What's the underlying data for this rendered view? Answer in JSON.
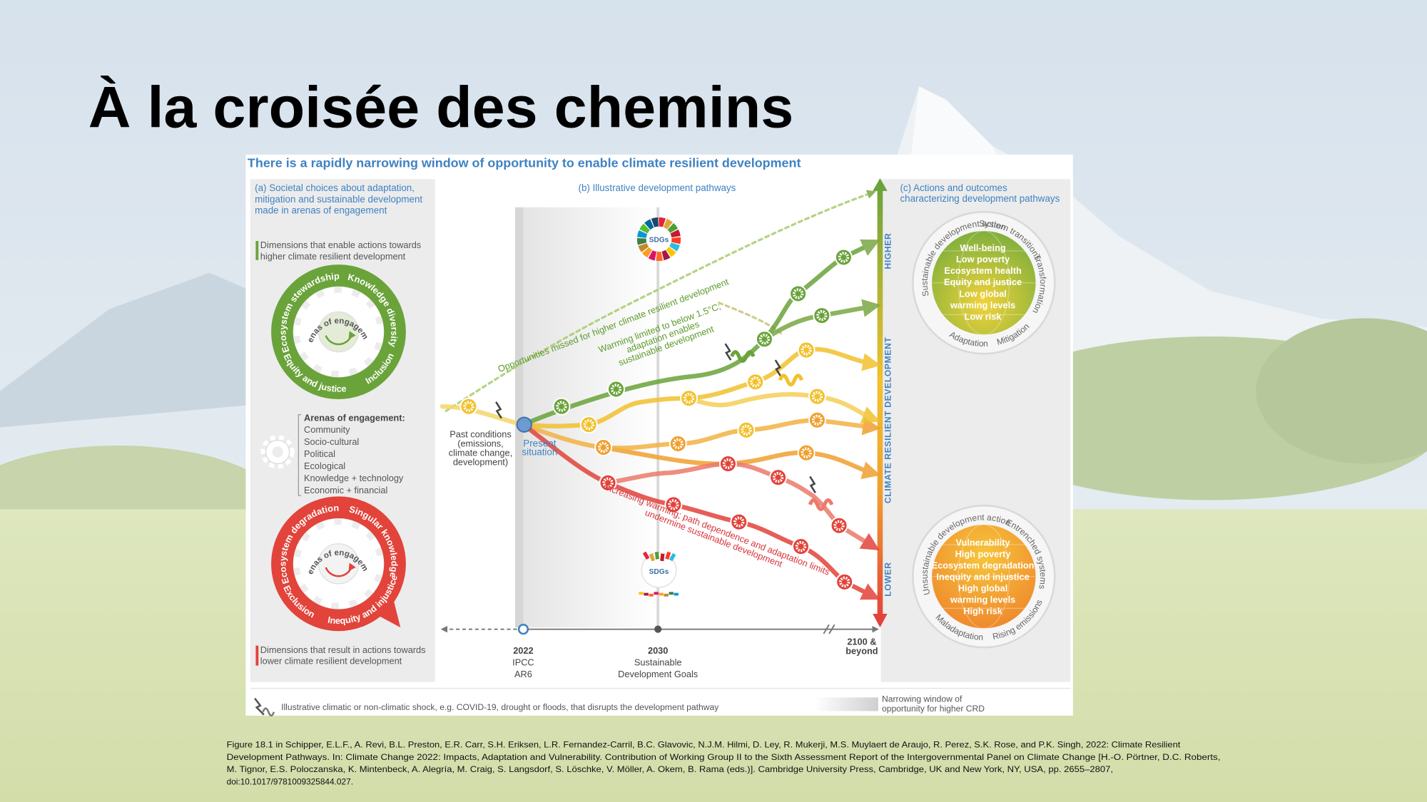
{
  "title": "À la croisée des chemins",
  "figure": {
    "heading": "There is a rapidly narrowing window of opportunity to enable climate resilient development",
    "panel_a": {
      "heading": [
        "(a) Societal choices about adaptation,",
        "mitigation and sustainable development",
        "made in arenas of engagement"
      ],
      "higher_label": [
        "Dimensions that enable actions towards",
        "higher climate resilient development"
      ],
      "higher_wheel": {
        "center": "Arenas of engagement",
        "ring": [
          "Ecosystem stewardship",
          "Knowledge diversity",
          "Inclusion",
          "Equity and justice"
        ]
      },
      "arenas_title": "Arenas of engagement:",
      "arenas": [
        "Community",
        "Socio-cultural",
        "Political",
        "Ecological",
        "Knowledge + technology",
        "Economic + financial"
      ],
      "lower_wheel": {
        "center": "Arenas of engagement",
        "ring": [
          "Ecosystem degradation",
          "Singular knowledge",
          "Inequity and injustice",
          "Exclusion"
        ]
      },
      "lower_label": [
        "Dimensions that result in actions towards",
        "lower climate resilient development"
      ]
    },
    "panel_b": {
      "heading": "(b) Illustrative development pathways",
      "sdg_badge_top": "SDGs",
      "sdg_badge_bottom": "SDGs",
      "past_conditions": [
        "Past conditions",
        "(emissions,",
        "climate change,",
        "development)"
      ],
      "present": [
        "Present",
        "situation"
      ],
      "missed": "Opportunities missed for higher climate resilient development",
      "higher_pathways": [
        "Warming limited to below 1.5°C;",
        "adaptation enables",
        "sustainable development"
      ],
      "lower_pathways": [
        "Increasing warming; path dependence and adaptation limits",
        "undermine sustainable development"
      ],
      "timeline": [
        [
          "2022",
          "IPCC",
          "AR6"
        ],
        [
          "2030",
          "Sustainable",
          "Development Goals"
        ],
        [
          "2100 &",
          "beyond"
        ]
      ],
      "axis": {
        "top": "HIGHER",
        "middle": "CLIMATE RESILIENT DEVELOPMENT",
        "bottom": "LOWER"
      }
    },
    "panel_c": {
      "heading": [
        "(c) Actions and outcomes",
        "characterizing development pathways"
      ],
      "higher_outcomes": {
        "ring": [
          "Sustainable development action",
          "System transitions",
          "Transformation",
          "Mitigation",
          "Adaptation"
        ],
        "outcomes": [
          "Well-being",
          "Low poverty",
          "Ecosystem health",
          "Equity and justice",
          "Low global",
          "warming levels",
          "Low risk"
        ]
      },
      "lower_outcomes": {
        "ring": [
          "Unsustainable development action",
          "Entrenched systems",
          "Rising emissions",
          "Maladaptation"
        ],
        "outcomes": [
          "Vulnerability",
          "High poverty",
          "Ecosystem degradation",
          "Inequity and injustice",
          "High global",
          "warming levels",
          "High risk"
        ]
      }
    },
    "legend": {
      "shock": "Illustrative climatic or non-climatic shock, e.g. COVID-19, drought or floods, that disrupts the development pathway",
      "window": [
        "Narrowing window of",
        "opportunity for higher CRD"
      ]
    }
  },
  "citation": [
    "Figure 18.1 in Schipper, E.L.F., A. Revi, B.L. Preston, E.R. Carr, S.H. Eriksen, L.R. Fernandez-Carril, B.C. Glavovic, N.J.M. Hilmi, D. Ley, R. Mukerji, M.S. Muylaert de Araujo, R. Perez, S.K. Rose, and P.K. Singh, 2022: Climate Resilient",
    "Development Pathways. In: Climate Change 2022: Impacts, Adaptation and Vulnerability. Contribution of Working Group II to the Sixth Assessment Report of the Intergovernmental Panel on Climate Change [H.-O. Pörtner, D.C. Roberts,",
    "M. Tignor, E.S. Poloczanska, K. Mintenbeck, A. Alegría, M. Craig, S. Langsdorf, S. Löschke, V. Möller, A. Okem, B. Rama (eds.)]. Cambridge University Press, Cambridge, UK and New York, NY, USA, pp. 2655–2807,",
    "doi:10.1017/9781009325844.027."
  ]
}
